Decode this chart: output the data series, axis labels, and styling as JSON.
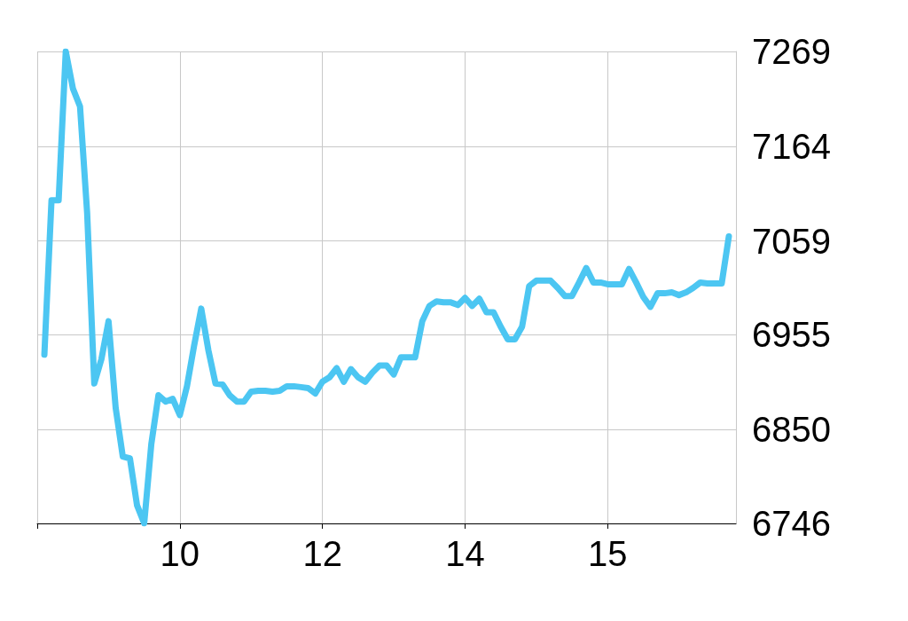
{
  "chart_data": {
    "type": "line",
    "categories": [
      null,
      null,
      null,
      null,
      null,
      null,
      null,
      null,
      null,
      null,
      null,
      null,
      null,
      null,
      null,
      null,
      null,
      null,
      null,
      null,
      "10",
      null,
      null,
      null,
      null,
      null,
      null,
      null,
      null,
      null,
      null,
      null,
      null,
      null,
      null,
      null,
      null,
      null,
      null,
      null,
      "12",
      null,
      null,
      null,
      null,
      null,
      null,
      null,
      null,
      null,
      null,
      null,
      null,
      null,
      null,
      null,
      null,
      null,
      null,
      null,
      "14",
      null,
      null,
      null,
      null,
      null,
      null,
      null,
      null,
      null,
      null,
      null,
      null,
      null,
      null,
      null,
      null,
      null,
      null,
      null,
      "15",
      null,
      null,
      null,
      null,
      null,
      null,
      null,
      null,
      null,
      null,
      null,
      null,
      null,
      null,
      null,
      null,
      null,
      null
    ],
    "series": [
      {
        "color": "#4cc6f2",
        "values": [
          null,
          6933,
          7104,
          7104,
          7269,
          7228,
          7208,
          7090,
          6901,
          6928,
          6970,
          6874,
          6820,
          6818,
          6766,
          6746,
          6834,
          6888,
          6881,
          6884,
          6866,
          6898,
          6943,
          6984,
          6938,
          6901,
          6900,
          6888,
          6881,
          6881,
          6892,
          6893,
          6893,
          6892,
          6893,
          6898,
          6898,
          6897,
          6896,
          6890,
          6903,
          6908,
          6918,
          6903,
          6917,
          6908,
          6903,
          6913,
          6921,
          6921,
          6911,
          6930,
          6930,
          6930,
          6970,
          6987,
          6992,
          6991,
          6991,
          6988,
          6996,
          6987,
          6995,
          6980,
          6980,
          6964,
          6950,
          6950,
          6964,
          7009,
          7015,
          7015,
          7015,
          7007,
          6998,
          6998,
          7013,
          7029,
          7013,
          7013,
          7011,
          7011,
          7011,
          7028,
          7013,
          6997,
          6986,
          7001,
          7001,
          7002,
          6999,
          7002,
          7007,
          7013,
          7012,
          7012,
          7012,
          7064,
          null
        ]
      }
    ],
    "ylim": [
      6746,
      7269
    ],
    "yticks": [
      6746,
      6850,
      6955,
      7059,
      7164,
      7269
    ],
    "grid": true,
    "marker": "none",
    "line_style": "solid"
  }
}
